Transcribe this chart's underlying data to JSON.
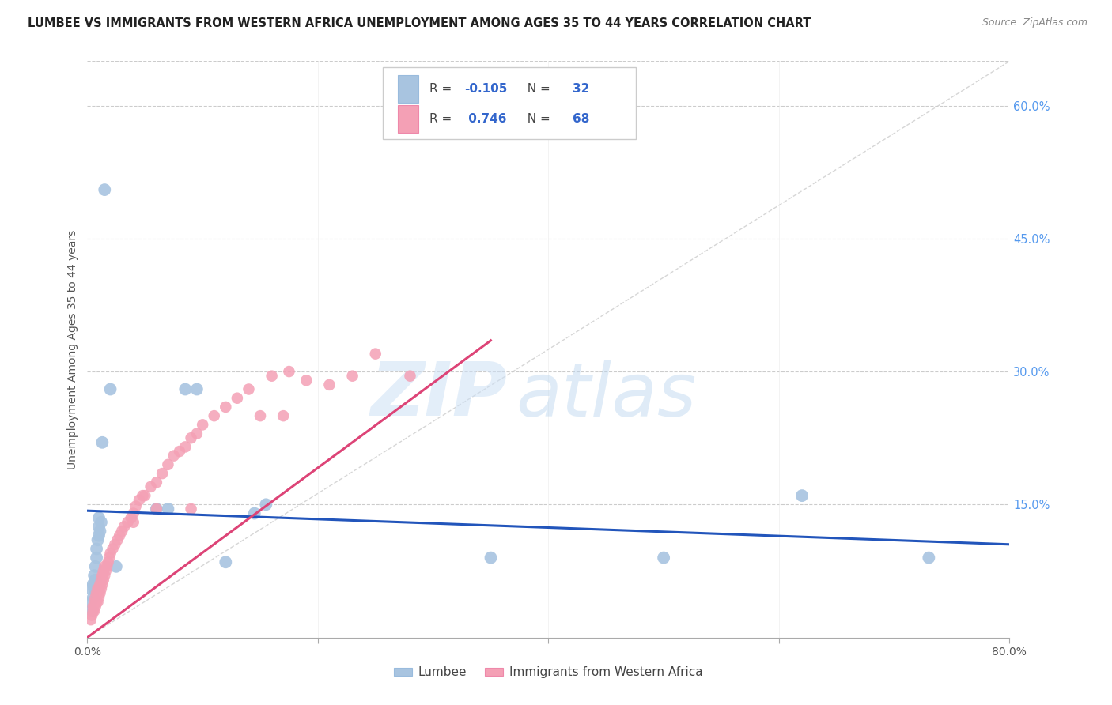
{
  "title": "LUMBEE VS IMMIGRANTS FROM WESTERN AFRICA UNEMPLOYMENT AMONG AGES 35 TO 44 YEARS CORRELATION CHART",
  "source": "Source: ZipAtlas.com",
  "ylabel": "Unemployment Among Ages 35 to 44 years",
  "xlim": [
    0.0,
    0.8
  ],
  "ylim": [
    0.0,
    0.65
  ],
  "yticks_right": [
    0.15,
    0.3,
    0.45,
    0.6
  ],
  "yticklabels_right": [
    "15.0%",
    "30.0%",
    "45.0%",
    "60.0%"
  ],
  "lumbee_color": "#a8c4e0",
  "immigrants_color": "#f4a0b5",
  "lumbee_line_color": "#2255bb",
  "immigrants_line_color": "#dd4477",
  "diagonal_color": "#cccccc",
  "watermark_zip": "ZIP",
  "watermark_atlas": "atlas",
  "lumbee_label": "Lumbee",
  "immigrants_label": "Immigrants from Western Africa",
  "legend_r1_label": "R = ",
  "legend_r1_val": "-0.105",
  "legend_n1_label": "N = ",
  "legend_n1_val": "32",
  "legend_r2_label": "R = ",
  "legend_r2_val": " 0.746",
  "legend_n2_label": "N = ",
  "legend_n2_val": "68",
  "lumbee_x": [
    0.003,
    0.003,
    0.004,
    0.005,
    0.005,
    0.006,
    0.006,
    0.007,
    0.007,
    0.008,
    0.008,
    0.009,
    0.01,
    0.01,
    0.01,
    0.011,
    0.012,
    0.013,
    0.015,
    0.02,
    0.025,
    0.06,
    0.07,
    0.085,
    0.095,
    0.12,
    0.145,
    0.155,
    0.35,
    0.5,
    0.62,
    0.73
  ],
  "lumbee_y": [
    0.04,
    0.055,
    0.03,
    0.06,
    0.045,
    0.07,
    0.055,
    0.065,
    0.08,
    0.09,
    0.1,
    0.11,
    0.115,
    0.125,
    0.135,
    0.12,
    0.13,
    0.22,
    0.505,
    0.28,
    0.08,
    0.145,
    0.145,
    0.28,
    0.28,
    0.085,
    0.14,
    0.15,
    0.09,
    0.09,
    0.16,
    0.09
  ],
  "immigrants_x": [
    0.003,
    0.004,
    0.005,
    0.005,
    0.006,
    0.006,
    0.007,
    0.007,
    0.008,
    0.008,
    0.009,
    0.009,
    0.01,
    0.01,
    0.011,
    0.011,
    0.012,
    0.012,
    0.013,
    0.013,
    0.014,
    0.014,
    0.015,
    0.015,
    0.016,
    0.017,
    0.018,
    0.019,
    0.02,
    0.022,
    0.024,
    0.026,
    0.028,
    0.03,
    0.032,
    0.035,
    0.038,
    0.04,
    0.042,
    0.045,
    0.048,
    0.05,
    0.055,
    0.06,
    0.065,
    0.07,
    0.075,
    0.08,
    0.085,
    0.09,
    0.095,
    0.1,
    0.11,
    0.12,
    0.13,
    0.14,
    0.15,
    0.16,
    0.175,
    0.19,
    0.21,
    0.23,
    0.25,
    0.28,
    0.17,
    0.09,
    0.06,
    0.04
  ],
  "immigrants_y": [
    0.02,
    0.025,
    0.03,
    0.035,
    0.03,
    0.04,
    0.035,
    0.045,
    0.04,
    0.05,
    0.04,
    0.055,
    0.045,
    0.055,
    0.05,
    0.06,
    0.055,
    0.065,
    0.06,
    0.07,
    0.065,
    0.075,
    0.07,
    0.08,
    0.075,
    0.08,
    0.085,
    0.09,
    0.095,
    0.1,
    0.105,
    0.11,
    0.115,
    0.12,
    0.125,
    0.13,
    0.135,
    0.14,
    0.148,
    0.155,
    0.16,
    0.16,
    0.17,
    0.175,
    0.185,
    0.195,
    0.205,
    0.21,
    0.215,
    0.225,
    0.23,
    0.24,
    0.25,
    0.26,
    0.27,
    0.28,
    0.25,
    0.295,
    0.3,
    0.29,
    0.285,
    0.295,
    0.32,
    0.295,
    0.25,
    0.145,
    0.145,
    0.13
  ],
  "blue_line_x": [
    0.0,
    0.8
  ],
  "blue_line_y": [
    0.143,
    0.105
  ],
  "pink_line_x": [
    0.0,
    0.35
  ],
  "pink_line_y": [
    0.0,
    0.335
  ]
}
